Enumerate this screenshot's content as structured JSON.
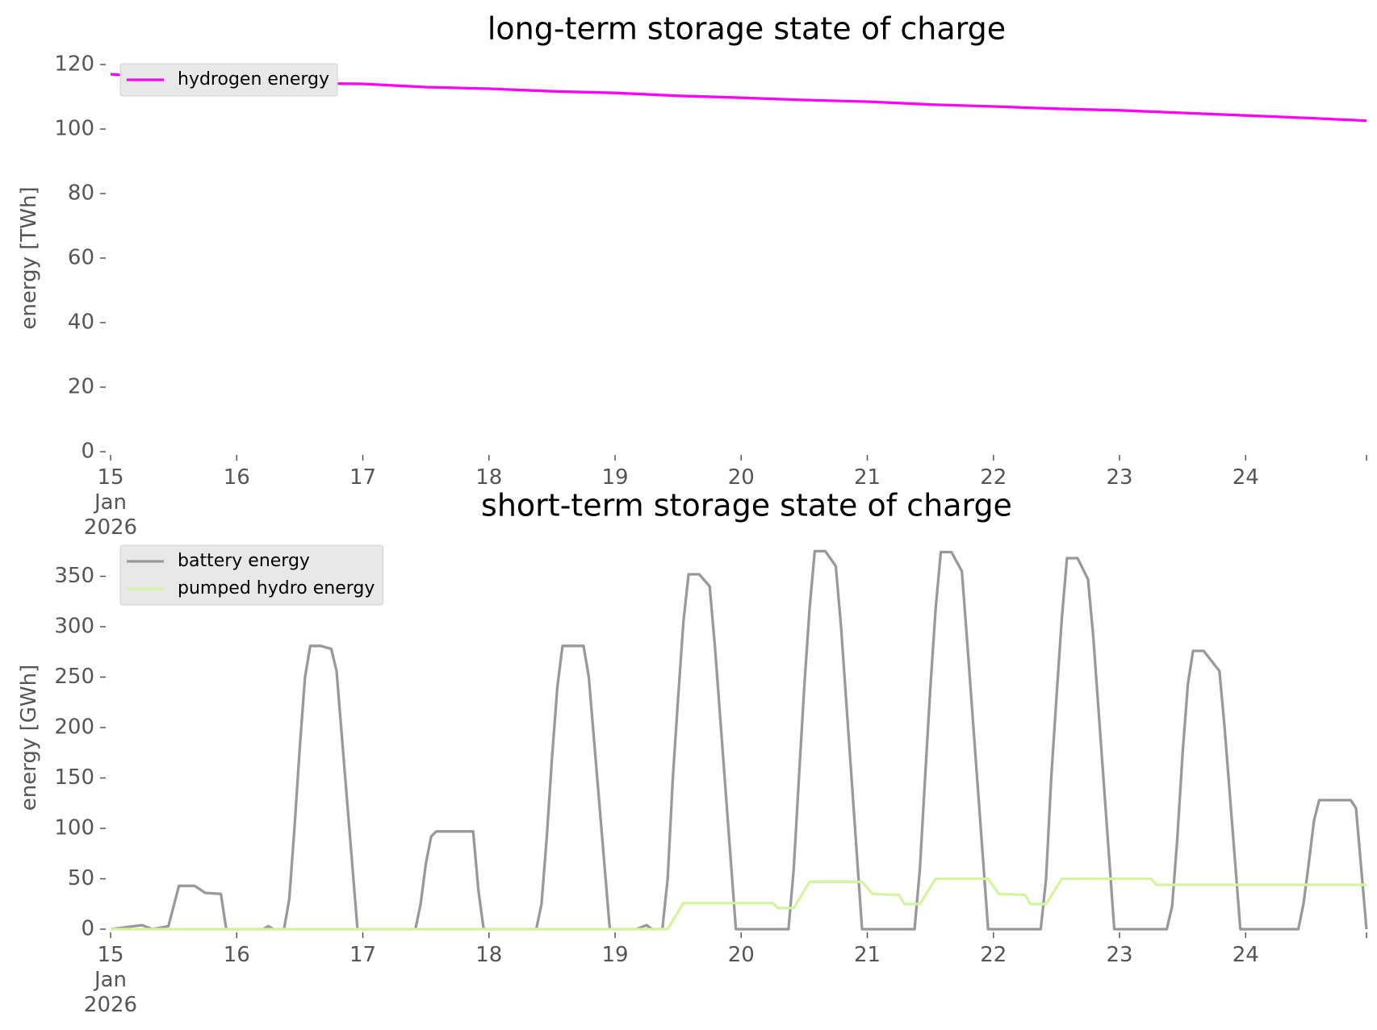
{
  "chart_data": [
    {
      "type": "line",
      "title": "long-term storage state of charge",
      "ylabel": "energy [TWh]",
      "xlim": [
        15,
        24.958
      ],
      "xticks": [
        {
          "value": 15,
          "label": "15\nJan\n2026"
        },
        16,
        17,
        18,
        19,
        20,
        21,
        22,
        23,
        24
      ],
      "ylim": [
        0,
        120
      ],
      "yticks": [
        0,
        20,
        40,
        60,
        80,
        100,
        120
      ],
      "grid": false,
      "legend": "upper left",
      "series": [
        {
          "name": "hydrogen energy",
          "color": "#ff00ff",
          "x": [
            15,
            15.5,
            16,
            16.5,
            17,
            17.5,
            18,
            18.5,
            19,
            19.5,
            20,
            20.5,
            21,
            21.5,
            22,
            22.5,
            23,
            23.5,
            24,
            24.5,
            24.958
          ],
          "values": [
            117,
            115.5,
            114.8,
            114.2,
            114,
            113,
            112.5,
            111.7,
            111.2,
            110.3,
            109.7,
            109,
            108.5,
            107.6,
            107,
            106.3,
            105.8,
            105,
            104.2,
            103.4,
            102.6
          ]
        }
      ]
    },
    {
      "type": "line",
      "title": "short-term storage state of charge",
      "ylabel": "energy [GWh]",
      "xlim": [
        15,
        24.958
      ],
      "xticks": [
        {
          "value": 15,
          "label": "15\nJan\n2026"
        },
        16,
        17,
        18,
        19,
        20,
        21,
        22,
        23,
        24
      ],
      "ylim": [
        0,
        380
      ],
      "yticks": [
        0,
        50,
        100,
        150,
        200,
        250,
        300,
        350
      ],
      "grid": false,
      "legend": "upper left",
      "series": [
        {
          "name": "battery energy",
          "color": "#999999",
          "x": [
            15,
            15.25,
            15.333,
            15.458,
            15.542,
            15.667,
            15.75,
            15.875,
            15.917,
            16.208,
            16.25,
            16.292,
            16.375,
            16.417,
            16.458,
            16.5,
            16.542,
            16.583,
            16.667,
            16.75,
            16.792,
            16.958,
            17.417,
            17.458,
            17.5,
            17.542,
            17.583,
            17.875,
            17.917,
            17.958,
            18.375,
            18.417,
            18.458,
            18.5,
            18.542,
            18.583,
            18.75,
            18.792,
            18.958,
            19.167,
            19.25,
            19.292,
            19.375,
            19.417,
            19.458,
            19.5,
            19.542,
            19.583,
            19.667,
            19.75,
            19.792,
            19.958,
            20.375,
            20.417,
            20.458,
            20.5,
            20.542,
            20.583,
            20.667,
            20.75,
            20.792,
            20.958,
            21.375,
            21.417,
            21.458,
            21.5,
            21.542,
            21.583,
            21.667,
            21.75,
            21.792,
            21.958,
            22.375,
            22.417,
            22.458,
            22.5,
            22.542,
            22.583,
            22.667,
            22.75,
            22.792,
            22.958,
            23.375,
            23.417,
            23.458,
            23.5,
            23.542,
            23.583,
            23.667,
            23.792,
            23.833,
            23.958,
            24.417,
            24.458,
            24.5,
            24.542,
            24.583,
            24.833,
            24.875,
            24.958
          ],
          "values": [
            0,
            4,
            0,
            3,
            43,
            43,
            36,
            35,
            0,
            0,
            3,
            0,
            0,
            30,
            100,
            180,
            250,
            281,
            281,
            278,
            256,
            0,
            0,
            25,
            65,
            92,
            97,
            97,
            38,
            0,
            0,
            25,
            90,
            170,
            240,
            281,
            281,
            250,
            0,
            0,
            4,
            0,
            0,
            50,
            150,
            230,
            305,
            352,
            352,
            340,
            280,
            0,
            0,
            60,
            150,
            240,
            318,
            375,
            375,
            360,
            300,
            0,
            0,
            60,
            150,
            240,
            318,
            374,
            374,
            355,
            285,
            0,
            0,
            50,
            150,
            230,
            308,
            368,
            368,
            347,
            290,
            0,
            0,
            23,
            90,
            175,
            243,
            276,
            276,
            256,
            200,
            0,
            0,
            25,
            65,
            108,
            128,
            128,
            120,
            0
          ]
        },
        {
          "name": "pumped hydro energy",
          "color": "#d4f5a0",
          "x": [
            15,
            19.417,
            19.542,
            20.25,
            20.292,
            20.417,
            20.542,
            20.958,
            21.042,
            21.25,
            21.292,
            21.417,
            21.542,
            21.958,
            22.042,
            22.25,
            22.292,
            22.417,
            22.542,
            23.25,
            23.292,
            24.958
          ],
          "values": [
            0,
            0,
            26,
            26,
            21,
            21,
            47,
            47,
            35,
            34,
            25,
            25,
            50,
            50,
            35,
            34,
            25,
            25,
            50,
            50,
            44,
            44
          ]
        }
      ]
    }
  ]
}
